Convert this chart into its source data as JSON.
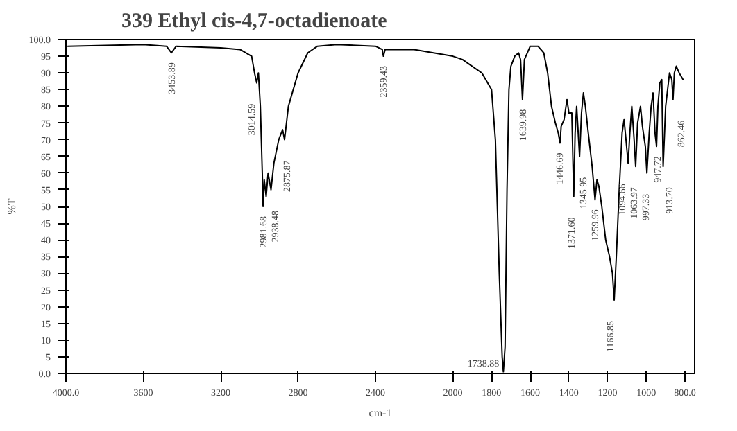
{
  "chart_data": {
    "type": "line",
    "title": "339      Ethyl cis-4,7-octadienoate",
    "xlabel": "cm-1",
    "ylabel": "%T",
    "xlim": [
      4000,
      750
    ],
    "ylim": [
      0,
      100
    ],
    "xticks": [
      {
        "value": 4000,
        "label": "4000.0"
      },
      3600,
      3200,
      2800,
      2400,
      2000,
      1800,
      1600,
      1400,
      1200,
      1000,
      {
        "value": 800,
        "label": "800.0"
      }
    ],
    "yticks": [
      {
        "value": 0,
        "label": "0.0"
      },
      5,
      10,
      15,
      20,
      25,
      30,
      35,
      40,
      45,
      50,
      55,
      60,
      65,
      70,
      75,
      80,
      85,
      90,
      95,
      {
        "value": 100,
        "label": "100.0"
      }
    ],
    "grid": false,
    "marker": "none",
    "line_style": "solid",
    "series": [
      {
        "color": "#000000",
        "x": [
          3990,
          3600,
          3480,
          3455,
          3430,
          3200,
          3100,
          3040,
          3025,
          3014,
          3005,
          2995,
          2985,
          2981,
          2975,
          2965,
          2955,
          2940,
          2925,
          2900,
          2880,
          2870,
          2850,
          2800,
          2750,
          2700,
          2600,
          2400,
          2365,
          2359,
          2350,
          2200,
          2100,
          2000,
          1950,
          1900,
          1850,
          1800,
          1780,
          1760,
          1745,
          1738.88,
          1730,
          1720,
          1710,
          1700,
          1680,
          1660,
          1650,
          1640,
          1630,
          1600,
          1560,
          1530,
          1510,
          1490,
          1470,
          1455,
          1446,
          1440,
          1425,
          1410,
          1400,
          1385,
          1375,
          1368,
          1360,
          1352,
          1345,
          1335,
          1325,
          1315,
          1300,
          1280,
          1265,
          1255,
          1245,
          1230,
          1210,
          1190,
          1175,
          1166,
          1155,
          1140,
          1125,
          1115,
          1105,
          1094,
          1085,
          1075,
          1063,
          1055,
          1045,
          1030,
          1020,
          1005,
          997,
          985,
          975,
          965,
          955,
          947,
          940,
          930,
          920,
          913,
          900,
          890,
          880,
          868,
          862,
          855,
          845,
          830,
          810
        ],
        "values": [
          98,
          98.5,
          98,
          96,
          98,
          97.5,
          97,
          95,
          90,
          87,
          90,
          80,
          60,
          50,
          58,
          53,
          60,
          55,
          63,
          70,
          73,
          70,
          80,
          90,
          96,
          98,
          98.5,
          98,
          97,
          95,
          97,
          97,
          96,
          95,
          94,
          92,
          90,
          85,
          70,
          30,
          5,
          0.5,
          8,
          55,
          85,
          92,
          95,
          96,
          94,
          82,
          94,
          98,
          98,
          96,
          90,
          80,
          75,
          72,
          69,
          74,
          76,
          82,
          78,
          78,
          53,
          72,
          80,
          72,
          65,
          78,
          84,
          80,
          72,
          62,
          52,
          58,
          56,
          50,
          40,
          35,
          30,
          22,
          35,
          55,
          72,
          76,
          70,
          63,
          72,
          80,
          70,
          62,
          75,
          80,
          74,
          68,
          60,
          72,
          80,
          84,
          72,
          68,
          80,
          87,
          88,
          62,
          80,
          85,
          90,
          88,
          82,
          90,
          92,
          90,
          88
        ]
      }
    ],
    "annotations": [
      {
        "text": "3453.89",
        "x": 3455,
        "y": 96
      },
      {
        "text": "3014.59",
        "x": 3014,
        "y": 87
      },
      {
        "text": "2981.68",
        "x": 2981,
        "y": 50
      },
      {
        "text": "2938.48",
        "x": 2940,
        "y": 55
      },
      {
        "text": "2875.87",
        "x": 2870,
        "y": 70
      },
      {
        "text": "2359.43",
        "x": 2359,
        "y": 95
      },
      {
        "text": "1738.88",
        "x": 1738.88,
        "y": 0.5
      },
      {
        "text": "1639.98",
        "x": 1640,
        "y": 82
      },
      {
        "text": "1446.69",
        "x": 1446,
        "y": 69
      },
      {
        "text": "1371.60",
        "x": 1375,
        "y": 53
      },
      {
        "text": "1345.95",
        "x": 1345,
        "y": 65
      },
      {
        "text": "1259.96",
        "x": 1265,
        "y": 52
      },
      {
        "text": "1166.85",
        "x": 1166,
        "y": 22
      },
      {
        "text": "1094.66",
        "x": 1094,
        "y": 63
      },
      {
        "text": "1063.97",
        "x": 1055,
        "y": 62
      },
      {
        "text": "997.33",
        "x": 997,
        "y": 60
      },
      {
        "text": "947.72",
        "x": 947,
        "y": 68
      },
      {
        "text": "913.70",
        "x": 913,
        "y": 62
      },
      {
        "text": "862.46",
        "x": 862,
        "y": 82
      }
    ]
  }
}
